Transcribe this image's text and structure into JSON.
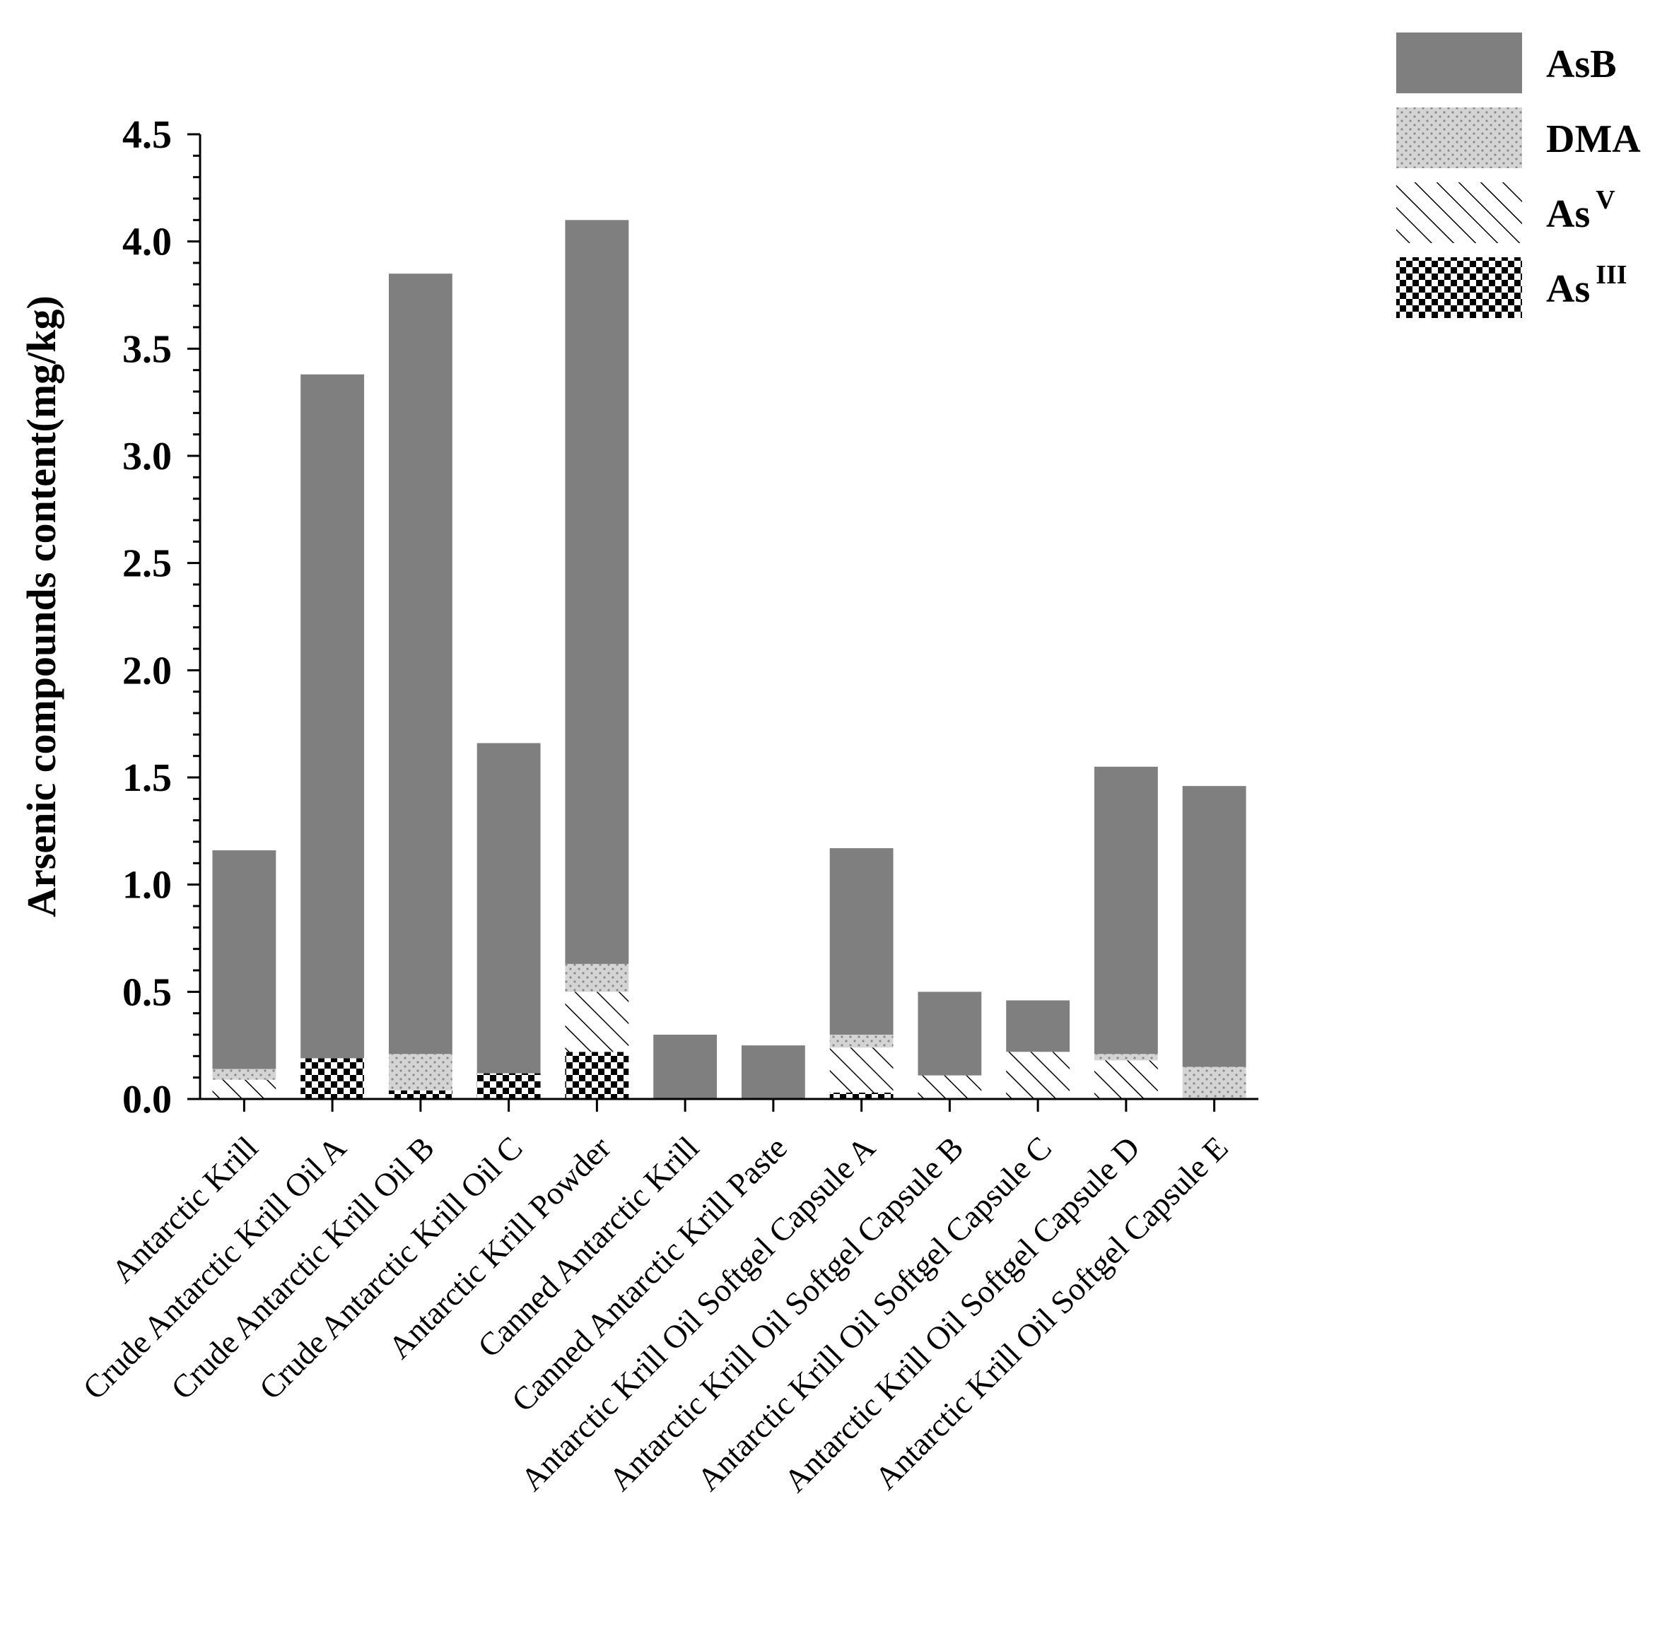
{
  "chart_data": {
    "type": "bar",
    "stacked": true,
    "title": "",
    "xlabel": "",
    "ylabel": "Arsenic compounds content(mg/kg)",
    "ylim": [
      0,
      4.5
    ],
    "yticks": [
      "0.0",
      "0.5",
      "1.0",
      "1.5",
      "2.0",
      "2.5",
      "3.0",
      "3.5",
      "4.0",
      "4.5"
    ],
    "legend_position": "top-right",
    "categories": [
      "Antarctic Krill",
      "Crude Antarctic Krill Oil A",
      "Crude Antarctic Krill Oil B",
      "Crude Antarctic Krill Oil C",
      "Antarctic Krill Powder",
      "Canned Antarctic Krill",
      "Canned Antarctic Krill Paste",
      "Antarctic Krill Oil Softgel Capsule A",
      "Antarctic Krill Oil Softgel Capsule B",
      "Antarctic Krill Oil Softgel Capsule C",
      "Antarctic Krill Oil Softgel Capsule D",
      "Antarctic Krill Oil Softgel Capsule E"
    ],
    "series": [
      {
        "name": "AsIII",
        "label_base": "As",
        "label_sup": "III",
        "pattern": "checker",
        "values": [
          0,
          0.19,
          0.04,
          0.12,
          0.22,
          0,
          0,
          0.03,
          0,
          0,
          0,
          0
        ]
      },
      {
        "name": "AsV",
        "label_base": "As",
        "label_sup": "V",
        "pattern": "hatch",
        "values": [
          0.09,
          0,
          0,
          0,
          0.28,
          0,
          0,
          0.21,
          0.11,
          0.22,
          0.18,
          0
        ]
      },
      {
        "name": "DMA",
        "label_base": "DMA",
        "label_sup": "",
        "pattern": "dots",
        "values": [
          0.05,
          0,
          0.17,
          0,
          0.13,
          0,
          0,
          0.06,
          0,
          0,
          0.03,
          0.15
        ]
      },
      {
        "name": "AsB",
        "label_base": "AsB",
        "label_sup": "",
        "pattern": "solid",
        "values": [
          1.02,
          3.19,
          3.64,
          1.54,
          3.47,
          0.3,
          0.25,
          0.87,
          0.39,
          0.24,
          1.34,
          1.31
        ]
      }
    ],
    "legend_order": [
      "AsB",
      "DMA",
      "AsV",
      "AsIII"
    ]
  },
  "colors": {
    "asb_fill": "#7f7f7f",
    "dma_fill": "#d4d4d4",
    "dma_dot": "#8a8a8a",
    "hatch_line": "#000000",
    "checker_dark": "#000000",
    "axis": "#000000"
  }
}
